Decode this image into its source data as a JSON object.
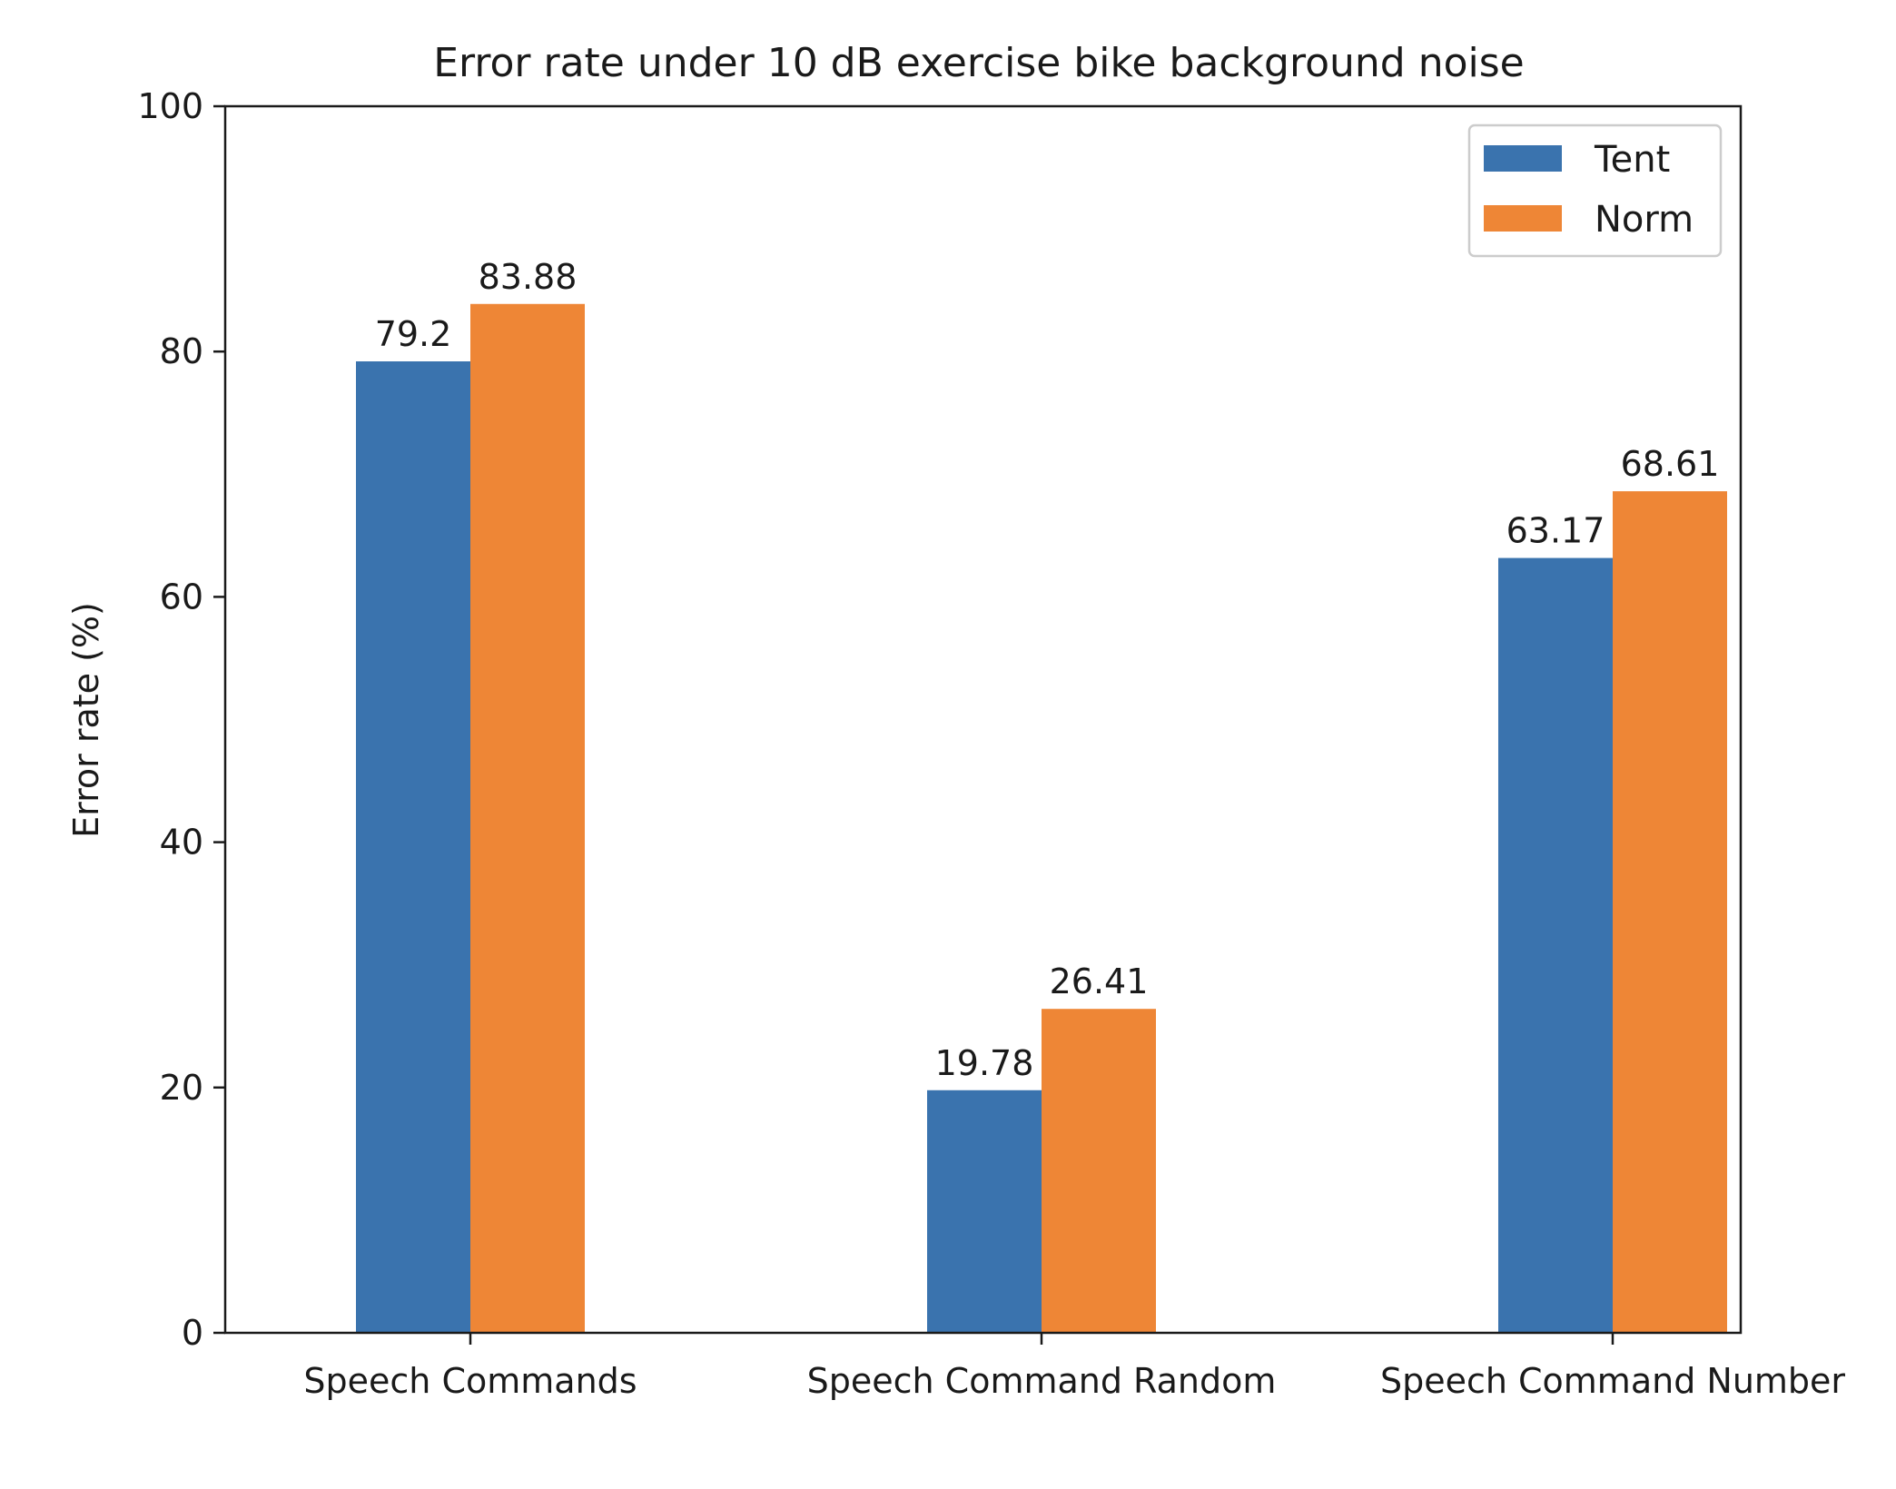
{
  "chart_data": {
    "type": "bar",
    "title": "Error rate under 10 dB exercise bike background noise",
    "xlabel": "",
    "ylabel": "Error rate (%)",
    "ylim": [
      0,
      100
    ],
    "yticks": [
      0,
      20,
      40,
      60,
      80,
      100
    ],
    "categories": [
      "Speech Commands",
      "Speech Command Random",
      "Speech Command Number"
    ],
    "series": [
      {
        "name": "Tent",
        "color": "#3a73ae",
        "values": [
          79.2,
          19.78,
          63.17
        ]
      },
      {
        "name": "Norm",
        "color": "#ee8636",
        "values": [
          83.88,
          26.41,
          68.61
        ]
      }
    ],
    "data_labels": [
      [
        "79.2",
        "19.78",
        "63.17"
      ],
      [
        "83.88",
        "26.41",
        "68.61"
      ]
    ],
    "legend_position": "top-right",
    "grid": false
  }
}
